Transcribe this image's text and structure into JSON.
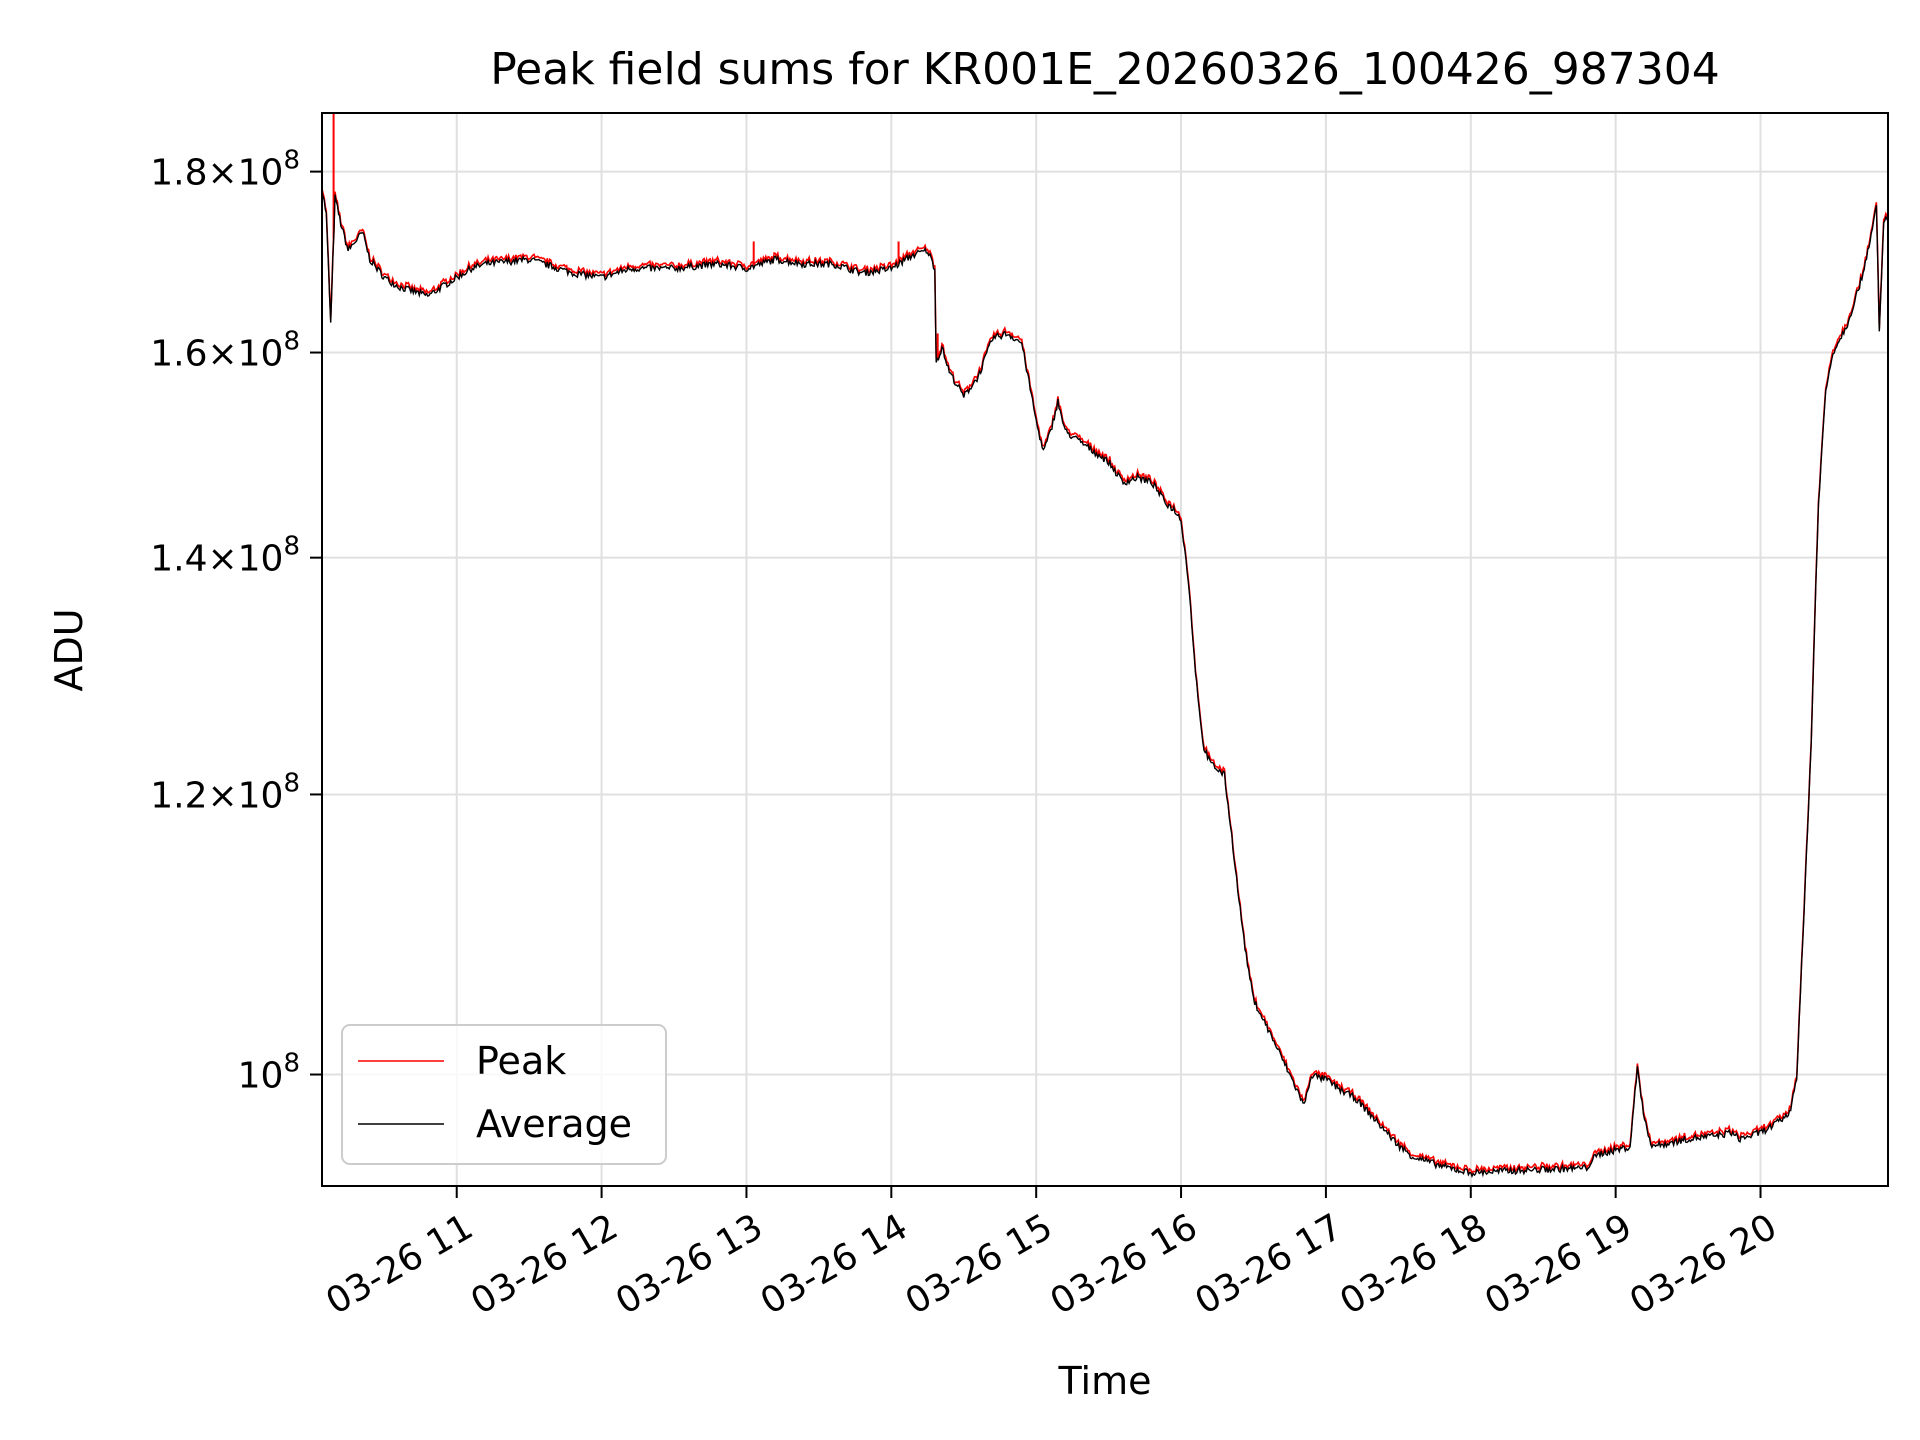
{
  "chart_data": {
    "type": "line",
    "title": "Peak field sums for KR001E_20260326_100426_987304",
    "xlabel": "Time",
    "ylabel": "ADU",
    "yscale": "log",
    "xlim": [
      10.07,
      20.88
    ],
    "ylim": [
      93000000,
      187000000
    ],
    "grid": true,
    "legend_location": "lower-left",
    "x_ticks": [
      {
        "value": 11,
        "label": "03-26 11"
      },
      {
        "value": 12,
        "label": "03-26 12"
      },
      {
        "value": 13,
        "label": "03-26 13"
      },
      {
        "value": 14,
        "label": "03-26 14"
      },
      {
        "value": 15,
        "label": "03-26 15"
      },
      {
        "value": 16,
        "label": "03-26 16"
      },
      {
        "value": 17,
        "label": "03-26 17"
      },
      {
        "value": 18,
        "label": "03-26 18"
      },
      {
        "value": 19,
        "label": "03-26 19"
      },
      {
        "value": 20,
        "label": "03-26 20"
      }
    ],
    "y_ticks": [
      {
        "value": 100000000,
        "mantissa": "",
        "exponent": "8",
        "label": "10^8"
      },
      {
        "value": 120000000,
        "mantissa": "1.2",
        "exponent": "8",
        "label": "1.2×10^8"
      },
      {
        "value": 140000000,
        "mantissa": "1.4",
        "exponent": "8",
        "label": "1.4×10^8"
      },
      {
        "value": 160000000,
        "mantissa": "1.6",
        "exponent": "8",
        "label": "1.6×10^8"
      },
      {
        "value": 180000000,
        "mantissa": "1.8",
        "exponent": "8",
        "label": "1.8×10^8"
      }
    ],
    "series": [
      {
        "name": "Peak",
        "color": "#ff0000",
        "spikes": [
          [
            10.15,
            190000000
          ],
          [
            14.32,
            162000000
          ],
          [
            13.05,
            172000000
          ],
          [
            14.05,
            172000000
          ]
        ]
      },
      {
        "name": "Average",
        "color": "#000000"
      }
    ],
    "x": [
      10.07,
      10.1,
      10.13,
      10.16,
      10.2,
      10.25,
      10.3,
      10.35,
      10.4,
      10.5,
      10.6,
      10.8,
      11.0,
      11.1,
      11.2,
      11.5,
      11.8,
      12.0,
      12.2,
      12.5,
      12.8,
      13.0,
      13.2,
      13.4,
      13.6,
      13.8,
      14.0,
      14.15,
      14.25,
      14.3,
      14.31,
      14.35,
      14.4,
      14.5,
      14.6,
      14.7,
      14.8,
      14.9,
      15.0,
      15.05,
      15.1,
      15.15,
      15.2,
      15.3,
      15.4,
      15.5,
      15.6,
      15.7,
      15.8,
      15.9,
      15.95,
      16.0,
      16.05,
      16.1,
      16.15,
      16.2,
      16.25,
      16.3,
      16.4,
      16.45,
      16.5,
      16.55,
      16.6,
      16.65,
      16.7,
      16.75,
      16.8,
      16.85,
      16.9,
      16.95,
      17.0,
      17.1,
      17.2,
      17.3,
      17.4,
      17.5,
      17.6,
      17.7,
      17.8,
      17.9,
      18.0,
      18.2,
      18.5,
      18.8,
      18.85,
      18.9,
      19.0,
      19.1,
      19.15,
      19.2,
      19.25,
      19.3,
      19.35,
      19.4,
      19.5,
      19.7,
      19.8,
      19.85,
      19.9,
      20.0,
      20.1,
      20.2,
      20.25,
      20.3,
      20.35,
      20.4,
      20.45,
      20.5,
      20.6,
      20.7,
      20.78,
      20.8,
      20.82,
      20.85,
      20.88
    ],
    "values": [
      178000000,
      175000000,
      163000000,
      177000000,
      174000000,
      171000000,
      172000000,
      173000000,
      170000000,
      168000000,
      167000000,
      166000000,
      168000000,
      169000000,
      169500000,
      170000000,
      168500000,
      168000000,
      169000000,
      169000000,
      169500000,
      169000000,
      170000000,
      169500000,
      169500000,
      168500000,
      169000000,
      170500000,
      171000000,
      169000000,
      159000000,
      160500000,
      158000000,
      155500000,
      157500000,
      161500000,
      162000000,
      161000000,
      153000000,
      150000000,
      152000000,
      155000000,
      152000000,
      151000000,
      150000000,
      149000000,
      147000000,
      147500000,
      147000000,
      145000000,
      144500000,
      143500000,
      138000000,
      130000000,
      124000000,
      122500000,
      122000000,
      121500000,
      112000000,
      108000000,
      105000000,
      104000000,
      103000000,
      102000000,
      101000000,
      100000000,
      99000000,
      98000000,
      100000000,
      99800000,
      99700000,
      99000000,
      98500000,
      97500000,
      96500000,
      95500000,
      94800000,
      94500000,
      94200000,
      94000000,
      93800000,
      93900000,
      94000000,
      94100000,
      94700000,
      95000000,
      95200000,
      95400000,
      100500000,
      97000000,
      95500000,
      95500000,
      95600000,
      95700000,
      95900000,
      96100000,
      96300000,
      95900000,
      96000000,
      96300000,
      96800000,
      97500000,
      99800000,
      111000000,
      124000000,
      145000000,
      156000000,
      160000000,
      163000000,
      168000000,
      174000000,
      176000000,
      162000000,
      174000000,
      175000000
    ]
  }
}
